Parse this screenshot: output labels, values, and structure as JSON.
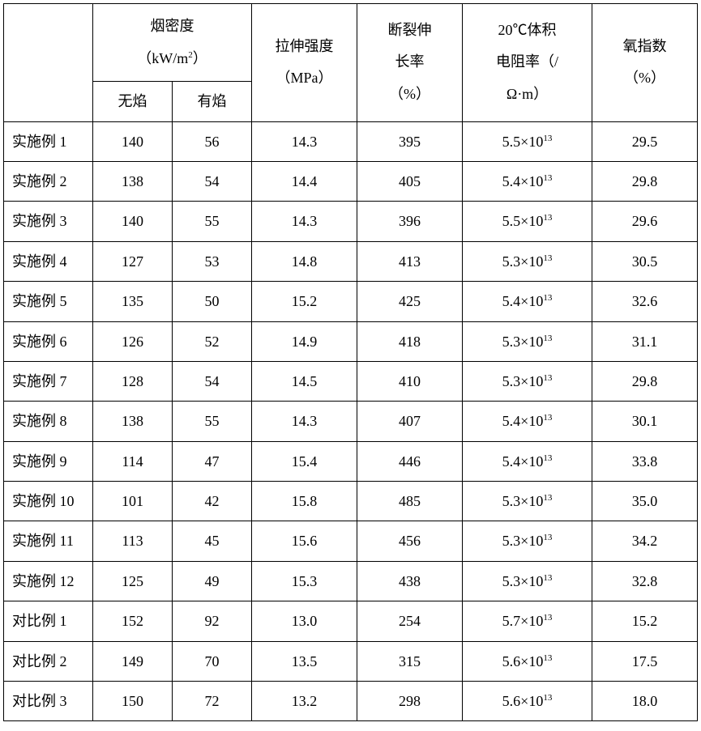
{
  "table": {
    "type": "table",
    "background_color": "#ffffff",
    "border_color": "#000000",
    "text_color": "#000000",
    "font_size_pt": 14,
    "header": {
      "smoke_density_title": "烟密度",
      "smoke_density_unit_pre": "（kW/m",
      "smoke_density_unit_sup": "2",
      "smoke_density_unit_post": "）",
      "no_flame": "无焰",
      "with_flame": "有焰",
      "tensile_l1": "拉伸强度",
      "tensile_l2": "（MPa）",
      "elongation_l1": "断裂伸",
      "elongation_l2": "长率",
      "elongation_l3": "（%）",
      "resistivity_l1": "20℃体积",
      "resistivity_l2": "电阻率（/",
      "resistivity_l3": "Ω·m）",
      "oxygen_l1": "氧指数",
      "oxygen_l2": "（%）"
    },
    "exp_sup": "13",
    "rows": [
      {
        "label": "实施例 1",
        "noflame": "140",
        "flame": "56",
        "tensile": "14.3",
        "elong": "395",
        "res_pre": "5.5×10",
        "oxy": "29.5"
      },
      {
        "label": "实施例 2",
        "noflame": "138",
        "flame": "54",
        "tensile": "14.4",
        "elong": "405",
        "res_pre": "5.4×10",
        "oxy": "29.8"
      },
      {
        "label": "实施例 3",
        "noflame": "140",
        "flame": "55",
        "tensile": "14.3",
        "elong": "396",
        "res_pre": "5.5×10",
        "oxy": "29.6"
      },
      {
        "label": "实施例 4",
        "noflame": "127",
        "flame": "53",
        "tensile": "14.8",
        "elong": "413",
        "res_pre": "5.3×10",
        "oxy": "30.5"
      },
      {
        "label": "实施例 5",
        "noflame": "135",
        "flame": "50",
        "tensile": "15.2",
        "elong": "425",
        "res_pre": "5.4×10",
        "oxy": "32.6"
      },
      {
        "label": "实施例 6",
        "noflame": "126",
        "flame": "52",
        "tensile": "14.9",
        "elong": "418",
        "res_pre": "5.3×10",
        "oxy": "31.1"
      },
      {
        "label": "实施例 7",
        "noflame": "128",
        "flame": "54",
        "tensile": "14.5",
        "elong": "410",
        "res_pre": "5.3×10",
        "oxy": "29.8"
      },
      {
        "label": "实施例 8",
        "noflame": "138",
        "flame": "55",
        "tensile": "14.3",
        "elong": "407",
        "res_pre": "5.4×10",
        "oxy": "30.1"
      },
      {
        "label": "实施例 9",
        "noflame": "114",
        "flame": "47",
        "tensile": "15.4",
        "elong": "446",
        "res_pre": "5.4×10",
        "oxy": "33.8"
      },
      {
        "label": "实施例 10",
        "noflame": "101",
        "flame": "42",
        "tensile": "15.8",
        "elong": "485",
        "res_pre": "5.3×10",
        "oxy": "35.0"
      },
      {
        "label": "实施例 11",
        "noflame": "113",
        "flame": "45",
        "tensile": "15.6",
        "elong": "456",
        "res_pre": "5.3×10",
        "oxy": "34.2"
      },
      {
        "label": "实施例 12",
        "noflame": "125",
        "flame": "49",
        "tensile": "15.3",
        "elong": "438",
        "res_pre": "5.3×10",
        "oxy": "32.8"
      },
      {
        "label": "对比例 1",
        "noflame": "152",
        "flame": "92",
        "tensile": "13.0",
        "elong": "254",
        "res_pre": "5.7×10",
        "oxy": "15.2"
      },
      {
        "label": "对比例 2",
        "noflame": "149",
        "flame": "70",
        "tensile": "13.5",
        "elong": "315",
        "res_pre": "5.6×10",
        "oxy": "17.5"
      },
      {
        "label": "对比例 3",
        "noflame": "150",
        "flame": "72",
        "tensile": "13.2",
        "elong": "298",
        "res_pre": "5.6×10",
        "oxy": "18.0"
      }
    ]
  }
}
